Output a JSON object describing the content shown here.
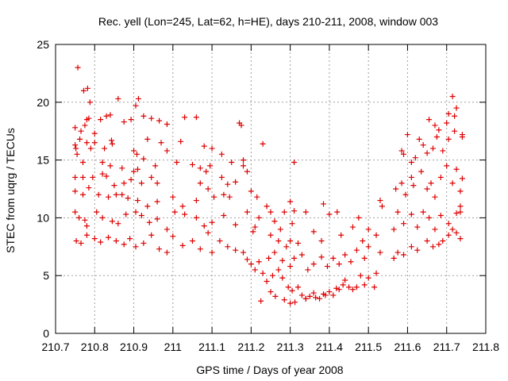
{
  "chart_data": {
    "type": "scatter",
    "title": "Rec. yell (Lon=245, Lat=62, h=HE), days 210-211, 2008, window 003",
    "xlabel": "GPS time / Days of year 2008",
    "ylabel": "STEC from uqrg / TECUs",
    "xlim": [
      210.7,
      211.8
    ],
    "ylim": [
      0,
      25
    ],
    "xticks": [
      210.7,
      210.8,
      210.9,
      211.0,
      211.1,
      211.2,
      211.3,
      211.4,
      211.5,
      211.6,
      211.7,
      211.8
    ],
    "xtick_labels": [
      "210.7",
      "210.8",
      "210.9",
      "211",
      "211.1",
      "211.2",
      "211.3",
      "211.4",
      "211.5",
      "211.6",
      "211.7",
      "211.8"
    ],
    "yticks": [
      0,
      5,
      10,
      15,
      20,
      25
    ],
    "ytick_labels": [
      "0",
      "5",
      "10",
      "15",
      "20",
      "25"
    ],
    "grid": true,
    "marker": "+",
    "marker_color": "#dd0000",
    "series": [
      {
        "points": [
          [
            210.757,
            23.0
          ],
          [
            210.772,
            21.0
          ],
          [
            210.782,
            21.2
          ],
          [
            210.788,
            20.0
          ],
          [
            210.86,
            20.3
          ],
          [
            210.912,
            20.3
          ],
          [
            210.905,
            19.7
          ],
          [
            210.75,
            17.8
          ],
          [
            210.765,
            17.5
          ],
          [
            210.775,
            18.0
          ],
          [
            210.78,
            18.5
          ],
          [
            210.785,
            18.6
          ],
          [
            210.8,
            17.3
          ],
          [
            210.815,
            18.5
          ],
          [
            210.83,
            18.8
          ],
          [
            210.84,
            18.9
          ],
          [
            210.875,
            18.3
          ],
          [
            210.893,
            18.5
          ],
          [
            210.925,
            18.8
          ],
          [
            210.945,
            18.6
          ],
          [
            210.965,
            18.4
          ],
          [
            210.985,
            18.1
          ],
          [
            211.03,
            18.7
          ],
          [
            211.06,
            18.7
          ],
          [
            211.17,
            18.2
          ],
          [
            211.175,
            18.0
          ],
          [
            210.75,
            16.3
          ],
          [
            210.752,
            16.0
          ],
          [
            210.762,
            16.8
          ],
          [
            210.78,
            16.5
          ],
          [
            210.79,
            16.0
          ],
          [
            210.8,
            16.5
          ],
          [
            210.825,
            16.0
          ],
          [
            210.843,
            16.7
          ],
          [
            210.845,
            16.4
          ],
          [
            210.9,
            15.8
          ],
          [
            210.908,
            15.5
          ],
          [
            210.925,
            15.1
          ],
          [
            210.935,
            16.8
          ],
          [
            210.97,
            16.5
          ],
          [
            210.985,
            15.8
          ],
          [
            211.02,
            16.6
          ],
          [
            211.08,
            16.2
          ],
          [
            211.1,
            16.0
          ],
          [
            211.125,
            15.5
          ],
          [
            211.18,
            15.0
          ],
          [
            211.23,
            16.4
          ],
          [
            210.755,
            15.5
          ],
          [
            210.77,
            14.8
          ],
          [
            210.82,
            14.8
          ],
          [
            210.84,
            14.5
          ],
          [
            210.87,
            14.3
          ],
          [
            210.9,
            14.0
          ],
          [
            210.91,
            14.2
          ],
          [
            210.955,
            14.5
          ],
          [
            211.01,
            14.8
          ],
          [
            211.05,
            14.6
          ],
          [
            211.07,
            14.3
          ],
          [
            211.085,
            14.0
          ],
          [
            211.095,
            14.5
          ],
          [
            211.15,
            14.8
          ],
          [
            211.18,
            14.5
          ],
          [
            211.19,
            14.0
          ],
          [
            210.75,
            13.5
          ],
          [
            210.77,
            13.5
          ],
          [
            210.795,
            13.5
          ],
          [
            210.82,
            13.8
          ],
          [
            210.83,
            13.6
          ],
          [
            210.85,
            12.8
          ],
          [
            210.875,
            13.0
          ],
          [
            210.893,
            13.3
          ],
          [
            210.92,
            13.0
          ],
          [
            210.945,
            13.5
          ],
          [
            210.96,
            13.0
          ],
          [
            211.07,
            13.0
          ],
          [
            211.09,
            12.5
          ],
          [
            211.125,
            13.5
          ],
          [
            211.14,
            12.9
          ],
          [
            211.16,
            13.1
          ],
          [
            210.75,
            12.3
          ],
          [
            210.77,
            12.0
          ],
          [
            210.785,
            12.6
          ],
          [
            210.81,
            12.0
          ],
          [
            210.835,
            11.8
          ],
          [
            210.855,
            12.0
          ],
          [
            210.87,
            12.0
          ],
          [
            210.885,
            11.7
          ],
          [
            210.91,
            11.5
          ],
          [
            210.935,
            11.0
          ],
          [
            210.96,
            11.4
          ],
          [
            211.0,
            11.8
          ],
          [
            211.025,
            11.0
          ],
          [
            211.06,
            11.5
          ],
          [
            211.105,
            11.8
          ],
          [
            211.13,
            12.0
          ],
          [
            211.145,
            11.8
          ],
          [
            211.2,
            12.3
          ],
          [
            210.75,
            10.5
          ],
          [
            210.76,
            10.0
          ],
          [
            210.775,
            9.8
          ],
          [
            210.78,
            9.3
          ],
          [
            210.805,
            10.5
          ],
          [
            210.82,
            10.0
          ],
          [
            210.845,
            9.7
          ],
          [
            210.86,
            9.5
          ],
          [
            210.88,
            10.3
          ],
          [
            210.905,
            10.5
          ],
          [
            210.92,
            10.2
          ],
          [
            210.94,
            9.6
          ],
          [
            210.96,
            9.9
          ],
          [
            210.985,
            9.0
          ],
          [
            211.005,
            10.5
          ],
          [
            211.03,
            10.3
          ],
          [
            211.06,
            10.0
          ],
          [
            211.08,
            9.3
          ],
          [
            211.1,
            9.6
          ],
          [
            211.13,
            10.2
          ],
          [
            211.16,
            9.4
          ],
          [
            211.19,
            10.5
          ],
          [
            211.22,
            10.0
          ],
          [
            210.753,
            8.0
          ],
          [
            210.765,
            7.8
          ],
          [
            210.78,
            8.5
          ],
          [
            210.8,
            8.2
          ],
          [
            210.815,
            7.9
          ],
          [
            210.835,
            8.3
          ],
          [
            210.855,
            8.0
          ],
          [
            210.875,
            7.7
          ],
          [
            210.89,
            8.2
          ],
          [
            210.905,
            7.5
          ],
          [
            210.925,
            7.8
          ],
          [
            210.945,
            8.5
          ],
          [
            210.965,
            7.3
          ],
          [
            210.985,
            7.0
          ],
          [
            211.0,
            8.4
          ],
          [
            211.025,
            7.6
          ],
          [
            211.05,
            8.0
          ],
          [
            211.07,
            7.3
          ],
          [
            211.09,
            8.7
          ],
          [
            211.1,
            7.0
          ],
          [
            211.12,
            8.0
          ],
          [
            211.14,
            7.5
          ],
          [
            211.16,
            7.2
          ],
          [
            211.18,
            7.0
          ],
          [
            211.19,
            6.4
          ],
          [
            211.2,
            6.0
          ],
          [
            211.21,
            5.5
          ],
          [
            211.22,
            6.2
          ],
          [
            211.205,
            8.8
          ],
          [
            211.21,
            9.2
          ],
          [
            211.215,
            11.8
          ],
          [
            211.24,
            11.0
          ],
          [
            211.25,
            10.5
          ],
          [
            211.26,
            9.7
          ],
          [
            211.275,
            9.0
          ],
          [
            211.285,
            10.5
          ],
          [
            211.3,
            11.4
          ],
          [
            211.31,
            10.6
          ],
          [
            211.3,
            8.0
          ],
          [
            211.32,
            7.8
          ],
          [
            211.23,
            5.2
          ],
          [
            211.24,
            4.5
          ],
          [
            211.255,
            5.0
          ],
          [
            211.27,
            5.5
          ],
          [
            211.28,
            4.8
          ],
          [
            211.295,
            4.0
          ],
          [
            211.305,
            3.7
          ],
          [
            211.32,
            4.0
          ],
          [
            211.33,
            3.3
          ],
          [
            211.34,
            3.0
          ],
          [
            211.35,
            3.2
          ],
          [
            211.36,
            3.5
          ],
          [
            211.375,
            3.0
          ],
          [
            211.385,
            3.4
          ],
          [
            211.4,
            3.6
          ],
          [
            211.41,
            3.3
          ],
          [
            211.425,
            3.8
          ],
          [
            211.435,
            4.2
          ],
          [
            211.45,
            4.0
          ],
          [
            211.46,
            3.8
          ],
          [
            211.225,
            2.8
          ],
          [
            211.25,
            3.6
          ],
          [
            211.262,
            3.2
          ],
          [
            211.285,
            2.9
          ],
          [
            211.3,
            2.6
          ],
          [
            211.312,
            2.7
          ],
          [
            211.34,
            3.0
          ],
          [
            211.365,
            3.1
          ],
          [
            211.39,
            3.3
          ],
          [
            211.418,
            3.9
          ],
          [
            211.44,
            4.6
          ],
          [
            211.47,
            4.0
          ],
          [
            211.48,
            5.0
          ],
          [
            211.245,
            6.5
          ],
          [
            211.26,
            7.0
          ],
          [
            211.28,
            6.3
          ],
          [
            211.3,
            5.8
          ],
          [
            211.31,
            6.5
          ],
          [
            211.33,
            6.8
          ],
          [
            211.345,
            5.5
          ],
          [
            211.36,
            6.0
          ],
          [
            211.38,
            6.6
          ],
          [
            211.395,
            5.8
          ],
          [
            211.41,
            6.5
          ],
          [
            211.425,
            6.0
          ],
          [
            211.44,
            6.8
          ],
          [
            211.455,
            6.2
          ],
          [
            211.47,
            7.2
          ],
          [
            211.49,
            6.5
          ],
          [
            211.5,
            7.5
          ],
          [
            211.25,
            8.5
          ],
          [
            211.27,
            8.0
          ],
          [
            211.29,
            7.5
          ],
          [
            211.305,
            9.5
          ],
          [
            211.34,
            10.5
          ],
          [
            211.36,
            8.8
          ],
          [
            211.385,
            11.2
          ],
          [
            211.4,
            10.3
          ],
          [
            211.38,
            8.0
          ],
          [
            211.42,
            10.5
          ],
          [
            211.43,
            8.5
          ],
          [
            211.46,
            9.2
          ],
          [
            211.475,
            10.0
          ],
          [
            211.485,
            8.0
          ],
          [
            211.5,
            9.0
          ],
          [
            211.52,
            8.5
          ],
          [
            211.53,
            11.5
          ],
          [
            211.31,
            14.8
          ],
          [
            211.49,
            4.2
          ],
          [
            211.5,
            4.8
          ],
          [
            211.515,
            4.0
          ],
          [
            211.52,
            5.2
          ],
          [
            211.53,
            7.0
          ],
          [
            211.535,
            11.0
          ],
          [
            211.565,
            6.5
          ],
          [
            211.575,
            7.0
          ],
          [
            211.59,
            6.8
          ],
          [
            211.61,
            7.5
          ],
          [
            211.625,
            7.2
          ],
          [
            211.65,
            8.0
          ],
          [
            211.665,
            7.5
          ],
          [
            211.68,
            7.7
          ],
          [
            211.69,
            8.0
          ],
          [
            211.705,
            8.5
          ],
          [
            211.715,
            9.0
          ],
          [
            211.725,
            8.7
          ],
          [
            211.735,
            8.2
          ],
          [
            211.565,
            9.0
          ],
          [
            211.575,
            10.5
          ],
          [
            211.59,
            9.5
          ],
          [
            211.61,
            10.3
          ],
          [
            211.625,
            9.2
          ],
          [
            211.64,
            10.5
          ],
          [
            211.655,
            10.0
          ],
          [
            211.67,
            9.0
          ],
          [
            211.685,
            10.2
          ],
          [
            211.705,
            9.5
          ],
          [
            211.725,
            10.4
          ],
          [
            211.735,
            11.0
          ],
          [
            211.735,
            10.5
          ],
          [
            211.57,
            12.5
          ],
          [
            211.585,
            13.0
          ],
          [
            211.595,
            12.0
          ],
          [
            211.61,
            13.5
          ],
          [
            211.615,
            12.8
          ],
          [
            211.635,
            14.0
          ],
          [
            211.65,
            12.5
          ],
          [
            211.66,
            13.0
          ],
          [
            211.67,
            11.8
          ],
          [
            211.685,
            13.5
          ],
          [
            211.7,
            14.5
          ],
          [
            211.715,
            13.0
          ],
          [
            211.725,
            14.2
          ],
          [
            211.735,
            12.3
          ],
          [
            211.74,
            13.4
          ],
          [
            211.585,
            15.8
          ],
          [
            211.59,
            15.5
          ],
          [
            211.61,
            14.8
          ],
          [
            211.62,
            15.2
          ],
          [
            211.64,
            16.3
          ],
          [
            211.65,
            15.6
          ],
          [
            211.665,
            16.0
          ],
          [
            211.675,
            17.0
          ],
          [
            211.69,
            15.8
          ],
          [
            211.705,
            16.8
          ],
          [
            211.72,
            17.5
          ],
          [
            211.74,
            17.2
          ],
          [
            211.74,
            17.0
          ],
          [
            211.6,
            17.2
          ],
          [
            211.63,
            16.8
          ],
          [
            211.655,
            18.5
          ],
          [
            211.67,
            18.0
          ],
          [
            211.68,
            17.6
          ],
          [
            211.7,
            18.2
          ],
          [
            211.725,
            19.5
          ],
          [
            211.72,
            18.8
          ],
          [
            211.715,
            20.5
          ],
          [
            211.705,
            19.0
          ]
        ]
      }
    ]
  }
}
